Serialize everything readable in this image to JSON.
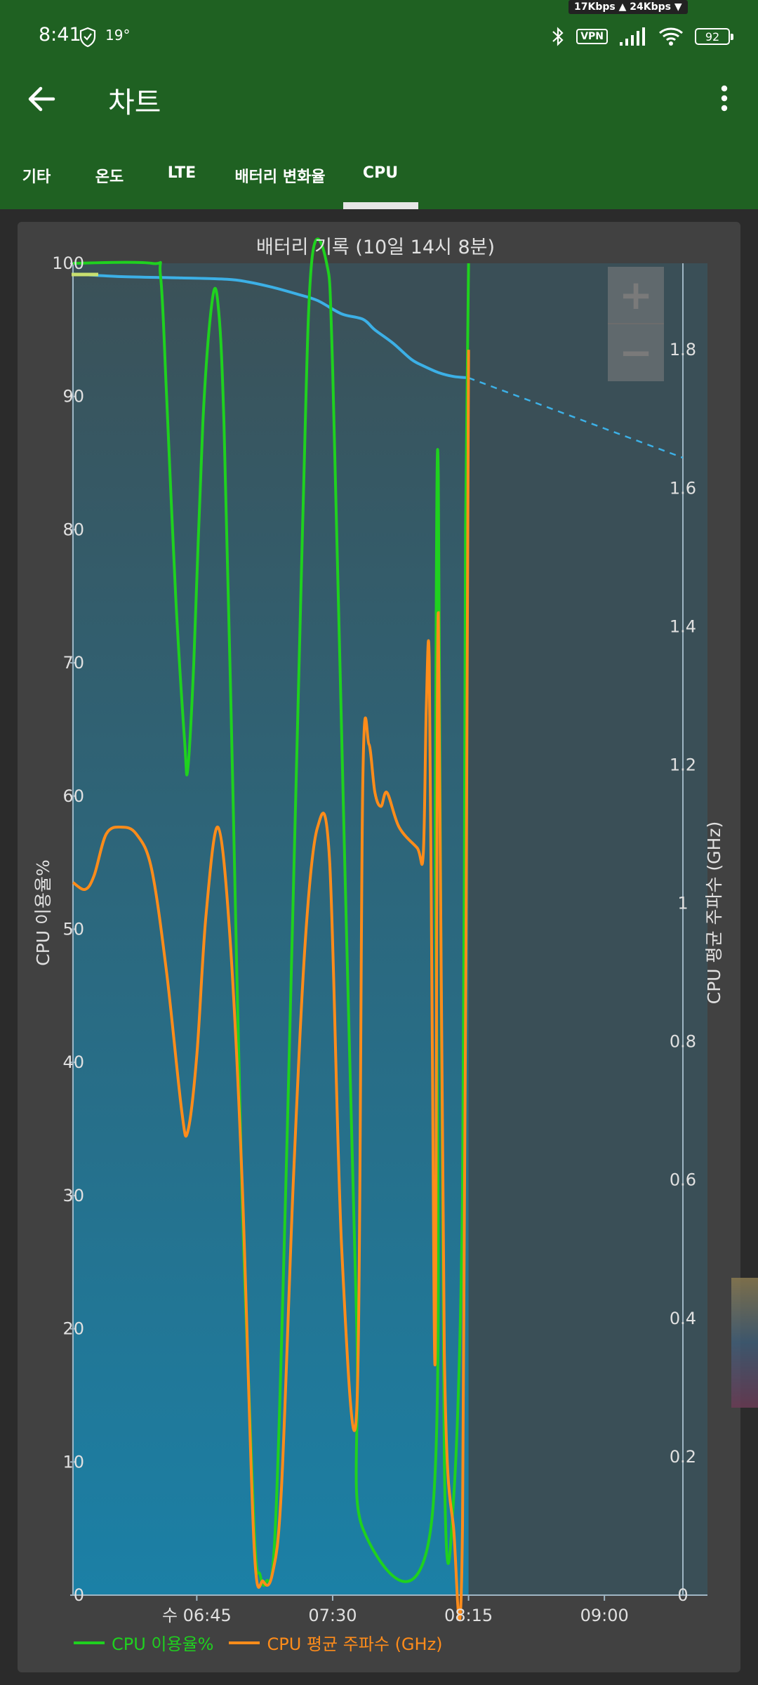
{
  "status_bar": {
    "time": "8:41",
    "temperature": "19°",
    "net_up": "17Kbps ▲",
    "net_down": "24Kbps ▼",
    "vpn": "VPN",
    "battery": "92",
    "icons": [
      "shield-icon",
      "bluetooth-icon",
      "vpn-icon",
      "signal-icon",
      "wifi-icon",
      "battery-icon"
    ]
  },
  "toolbar": {
    "title": "차트",
    "back_icon": "back-arrow-icon",
    "more_icon": "more-vert-icon"
  },
  "tabs": [
    {
      "label": "기타",
      "active": false
    },
    {
      "label": "온도",
      "active": false
    },
    {
      "label": "LTE",
      "active": false
    },
    {
      "label": "배터리 변화율",
      "active": false
    },
    {
      "label": "CPU",
      "active": true
    }
  ],
  "zoom": {
    "plus": "+",
    "minus": "−"
  },
  "colors": {
    "appbar": "#1f6122",
    "cpu_usage": "#1fd11f",
    "cpu_freq": "#ff8c1a",
    "battery": "#3cb0e6",
    "plot_top": "#3b5158",
    "plot_bottom": "#1b80a6"
  },
  "chart_data": {
    "type": "line",
    "title": "배터리 기록 (10일 14시 8분)",
    "ylabel_left": "CPU 이용율%",
    "ylabel_right": "CPU 평균 주파수 (GHz)",
    "xticks": [
      "수 06:45",
      "07:30",
      "08:15",
      "09:00"
    ],
    "yticks_left": [
      "0",
      "10",
      "20",
      "30",
      "40",
      "50",
      "60",
      "70",
      "80",
      "90",
      "100"
    ],
    "yticks_right": [
      "0",
      "0.2",
      "0.4",
      "0.6",
      "0.8",
      "1",
      "1.2",
      "1.4",
      "1.6",
      "1.8"
    ],
    "ylim_left": [
      0,
      100
    ],
    "ylim_right": [
      0,
      1.925
    ],
    "legend_position": "bottom-left",
    "series": [
      {
        "name": "CPU 이용율%",
        "axis": "left",
        "points": [
          [
            "06:04",
            100
          ],
          [
            "06:30",
            100
          ],
          [
            "06:33",
            99
          ],
          [
            "06:35",
            90
          ],
          [
            "06:38",
            75
          ],
          [
            "06:41",
            64
          ],
          [
            "06:42",
            62
          ],
          [
            "06:44",
            70
          ],
          [
            "06:47",
            88
          ],
          [
            "06:50",
            97
          ],
          [
            "06:52",
            97
          ],
          [
            "06:54",
            88
          ],
          [
            "06:57",
            60
          ],
          [
            "07:00",
            30
          ],
          [
            "07:04",
            5
          ],
          [
            "07:06",
            1.5
          ],
          [
            "07:08",
            1
          ],
          [
            "07:11",
            5
          ],
          [
            "07:15",
            35
          ],
          [
            "07:20",
            80
          ],
          [
            "07:23",
            100
          ],
          [
            "07:28",
            100
          ],
          [
            "07:30",
            92
          ],
          [
            "07:34",
            55
          ],
          [
            "07:38",
            20
          ],
          [
            "07:40",
            5
          ],
          [
            "08:03",
            6
          ],
          [
            "08:04",
            60
          ],
          [
            "08:05",
            84
          ],
          [
            "08:07",
            10
          ],
          [
            "08:10",
            7
          ],
          [
            "08:13",
            30
          ],
          [
            "08:14",
            80
          ],
          [
            "08:15",
            100
          ]
        ]
      },
      {
        "name": "CPU 평균 주파수 (GHz)",
        "axis": "right",
        "points": [
          [
            "06:04",
            1.03
          ],
          [
            "06:08",
            1.02
          ],
          [
            "06:11",
            1.04
          ],
          [
            "06:15",
            1.1
          ],
          [
            "06:20",
            1.11
          ],
          [
            "06:25",
            1.1
          ],
          [
            "06:30",
            1.05
          ],
          [
            "06:35",
            0.9
          ],
          [
            "06:40",
            0.7
          ],
          [
            "06:42",
            0.67
          ],
          [
            "06:45",
            0.78
          ],
          [
            "06:48",
            0.98
          ],
          [
            "06:52",
            1.11
          ],
          [
            "06:56",
            0.95
          ],
          [
            "07:00",
            0.6
          ],
          [
            "07:04",
            0.07
          ],
          [
            "07:07",
            0.02
          ],
          [
            "07:10",
            0.03
          ],
          [
            "07:13",
            0.15
          ],
          [
            "07:17",
            0.6
          ],
          [
            "07:21",
            0.95
          ],
          [
            "07:25",
            1.11
          ],
          [
            "07:29",
            1.06
          ],
          [
            "07:33",
            0.5
          ],
          [
            "07:38",
            0.27
          ],
          [
            "07:40",
            1.18
          ],
          [
            "07:42",
            1.23
          ],
          [
            "07:44",
            1.16
          ],
          [
            "07:46",
            1.14
          ],
          [
            "07:48",
            1.16
          ],
          [
            "07:52",
            1.11
          ],
          [
            "07:58",
            1.08
          ],
          [
            "08:00",
            1.07
          ],
          [
            "08:01",
            1.28
          ],
          [
            "08:02",
            1.35
          ],
          [
            "08:03",
            0.8
          ],
          [
            "08:04",
            0.35
          ],
          [
            "08:05",
            1.42
          ],
          [
            "08:07",
            0.35
          ],
          [
            "08:10",
            0.1
          ],
          [
            "08:13",
            0.1
          ],
          [
            "08:15",
            1.8
          ]
        ]
      },
      {
        "name": "battery",
        "axis": "left",
        "points": [
          [
            "06:04",
            99.2
          ],
          [
            "06:20",
            99.0
          ],
          [
            "06:40",
            98.9
          ],
          [
            "06:55",
            98.8
          ],
          [
            "07:02",
            98.6
          ],
          [
            "07:10",
            98.2
          ],
          [
            "07:18",
            97.7
          ],
          [
            "07:25",
            97.2
          ],
          [
            "07:33",
            96.2
          ],
          [
            "07:40",
            95.8
          ],
          [
            "07:44",
            95.0
          ],
          [
            "07:50",
            94.0
          ],
          [
            "07:56",
            92.8
          ],
          [
            "08:00",
            92.3
          ],
          [
            "08:05",
            91.8
          ],
          [
            "08:10",
            91.5
          ],
          [
            "08:15",
            91.4
          ]
        ]
      },
      {
        "name": "battery_projection",
        "axis": "left",
        "points": [
          [
            "08:15",
            91.4
          ],
          [
            "09:26",
            85.4
          ]
        ]
      }
    ]
  }
}
